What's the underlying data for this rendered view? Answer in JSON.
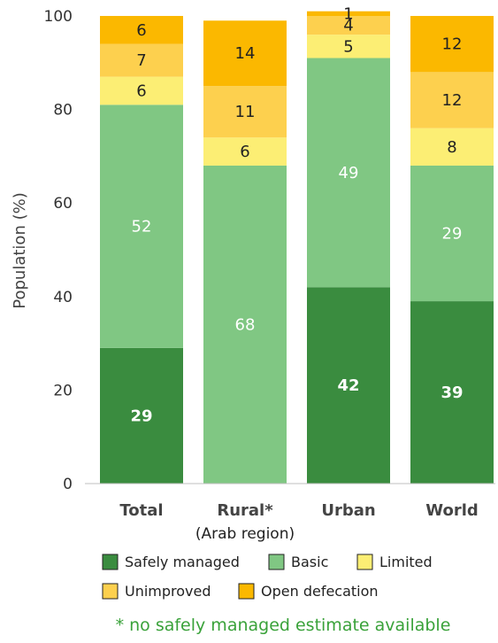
{
  "chart_data": {
    "type": "bar",
    "stacked": true,
    "ylabel": "Population (%)",
    "ylim": [
      0,
      100
    ],
    "yticks": [
      0,
      20,
      40,
      60,
      80,
      100
    ],
    "categories": [
      "Total",
      "Rural*",
      "Urban",
      "World"
    ],
    "category_sublabels": [
      "",
      "(Arab region)",
      "",
      ""
    ],
    "series": [
      {
        "name": "Safely managed",
        "color": "#3a8c3f",
        "label_color": "#ffffff",
        "label_bold": true,
        "values": [
          29,
          null,
          42,
          39
        ],
        "labels": [
          "29",
          "",
          "42",
          "39"
        ]
      },
      {
        "name": "Basic",
        "color": "#80c783",
        "label_color": "#ffffff",
        "label_bold": false,
        "values": [
          52,
          68,
          49,
          29
        ],
        "labels": [
          "52",
          "68",
          "49",
          "29"
        ]
      },
      {
        "name": "Limited",
        "color": "#fcee74",
        "label_color": "#222222",
        "label_bold": false,
        "values": [
          6,
          6,
          5,
          8
        ],
        "labels": [
          "6",
          "6",
          "5",
          "8"
        ]
      },
      {
        "name": "Unimproved",
        "color": "#fdd04e",
        "label_color": "#222222",
        "label_bold": false,
        "values": [
          7,
          11,
          4,
          12
        ],
        "labels": [
          "7",
          "11",
          "4",
          "12"
        ]
      },
      {
        "name": "Open defecation",
        "color": "#fbb800",
        "label_color": "#222222",
        "label_bold": false,
        "values": [
          6,
          14,
          1,
          12
        ],
        "labels": [
          "6",
          "14",
          "1",
          "12"
        ]
      }
    ],
    "legend_position": "bottom",
    "grid": false,
    "footnote": "* no safely managed estimate available"
  }
}
